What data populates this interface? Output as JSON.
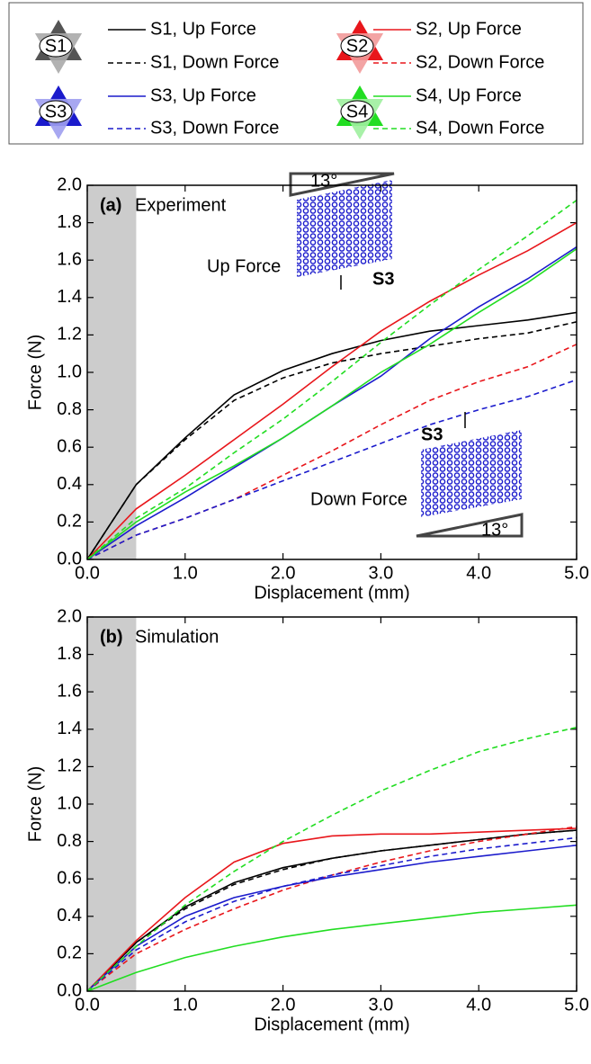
{
  "legend_icons": [
    "S1",
    "S2",
    "S3",
    "S4"
  ],
  "chart_data": [
    {
      "type": "line",
      "panel_label": "(a)",
      "title": "Experiment",
      "xlabel": "Displacement (mm)",
      "ylabel": "Force (N)",
      "x": [
        0,
        0.5,
        1,
        1.5,
        2,
        2.5,
        3,
        3.5,
        4,
        4.5,
        5
      ],
      "shade": [
        0,
        0.5
      ],
      "xlim": [
        0,
        5
      ],
      "ylim": [
        0,
        2
      ],
      "xticks": [
        {
          "value": 0,
          "label": "0.0"
        },
        {
          "value": 1,
          "label": "1.0"
        },
        {
          "value": 2,
          "label": "2.0"
        },
        {
          "value": 3,
          "label": "3.0"
        },
        {
          "value": 4,
          "label": "4.0"
        },
        {
          "value": 5,
          "label": "5.0"
        }
      ],
      "yticks": [
        {
          "value": 0,
          "label": "0.0"
        },
        {
          "value": 0.2,
          "label": "0.2"
        },
        {
          "value": 0.4,
          "label": "0.4"
        },
        {
          "value": 0.6,
          "label": "0.6"
        },
        {
          "value": 0.8,
          "label": "0.8"
        },
        {
          "value": 1,
          "label": "1.0"
        },
        {
          "value": 1.2,
          "label": "1.2"
        },
        {
          "value": 1.4,
          "label": "1.4"
        },
        {
          "value": 1.6,
          "label": "1.6"
        },
        {
          "value": 1.8,
          "label": "1.8"
        },
        {
          "value": 2,
          "label": "2.0"
        }
      ],
      "insets": [
        {
          "label": "Up Force",
          "sample": "S3",
          "angle": "13°"
        },
        {
          "label": "Down Force",
          "sample": "S3",
          "angle": "13°"
        }
      ],
      "series": [
        {
          "name": "S1, Up Force",
          "color": "#000000",
          "line_style": "solid",
          "values": [
            0,
            0.4,
            0.65,
            0.88,
            1.01,
            1.1,
            1.17,
            1.22,
            1.25,
            1.28,
            1.32
          ]
        },
        {
          "name": "S1, Down Force",
          "color": "#000000",
          "line_style": "dashed",
          "values": [
            0,
            0.4,
            0.64,
            0.85,
            0.97,
            1.05,
            1.1,
            1.14,
            1.18,
            1.21,
            1.27
          ]
        },
        {
          "name": "S2, Up Force",
          "color": "#e8161b",
          "line_style": "solid",
          "values": [
            0,
            0.27,
            0.45,
            0.64,
            0.83,
            1.03,
            1.22,
            1.38,
            1.52,
            1.65,
            1.8
          ]
        },
        {
          "name": "S2, Down Force",
          "color": "#e8161b",
          "line_style": "dashed",
          "values": [
            0,
            0.13,
            0.22,
            0.32,
            0.45,
            0.58,
            0.72,
            0.85,
            0.95,
            1.03,
            1.15
          ]
        },
        {
          "name": "S3, Up Force",
          "color": "#1b1bcc",
          "line_style": "solid",
          "values": [
            0,
            0.18,
            0.33,
            0.49,
            0.65,
            0.82,
            0.98,
            1.18,
            1.35,
            1.5,
            1.67
          ]
        },
        {
          "name": "S3, Down Force",
          "color": "#1b1bcc",
          "line_style": "dashed",
          "values": [
            0,
            0.13,
            0.22,
            0.32,
            0.42,
            0.52,
            0.62,
            0.72,
            0.8,
            0.87,
            0.96
          ]
        },
        {
          "name": "S4, Up Force",
          "color": "#22dd22",
          "line_style": "solid",
          "values": [
            0,
            0.2,
            0.36,
            0.5,
            0.65,
            0.82,
            1,
            1.15,
            1.32,
            1.48,
            1.66
          ]
        },
        {
          "name": "S4, Down Force",
          "color": "#22dd22",
          "line_style": "dashed",
          "values": [
            0,
            0.22,
            0.38,
            0.57,
            0.75,
            0.95,
            1.16,
            1.36,
            1.55,
            1.73,
            1.92
          ]
        }
      ]
    },
    {
      "type": "line",
      "panel_label": "(b)",
      "title": "Simulation",
      "xlabel": "Displacement (mm)",
      "ylabel": "Force (N)",
      "x": [
        0,
        0.5,
        1,
        1.5,
        2,
        2.5,
        3,
        3.5,
        4,
        4.5,
        5
      ],
      "shade": [
        0,
        0.5
      ],
      "xlim": [
        0,
        5
      ],
      "ylim": [
        0,
        2
      ],
      "xticks": [
        {
          "value": 0,
          "label": "0.0"
        },
        {
          "value": 1,
          "label": "1.0"
        },
        {
          "value": 2,
          "label": "2.0"
        },
        {
          "value": 3,
          "label": "3.0"
        },
        {
          "value": 4,
          "label": "4.0"
        },
        {
          "value": 5,
          "label": "5.0"
        }
      ],
      "yticks": [
        {
          "value": 0,
          "label": "0.0"
        },
        {
          "value": 0.2,
          "label": "0.2"
        },
        {
          "value": 0.4,
          "label": "0.4"
        },
        {
          "value": 0.6,
          "label": "0.6"
        },
        {
          "value": 0.8,
          "label": "0.8"
        },
        {
          "value": 1,
          "label": "1.0"
        },
        {
          "value": 1.2,
          "label": "1.2"
        },
        {
          "value": 1.4,
          "label": "1.4"
        },
        {
          "value": 1.6,
          "label": "1.6"
        },
        {
          "value": 1.8,
          "label": "1.8"
        },
        {
          "value": 2,
          "label": "2.0"
        }
      ],
      "series": [
        {
          "color": "#000000",
          "line_style": "solid",
          "values": [
            0,
            0.26,
            0.45,
            0.58,
            0.66,
            0.71,
            0.75,
            0.78,
            0.81,
            0.84,
            0.86
          ]
        },
        {
          "color": "#000000",
          "line_style": "dashed",
          "values": [
            0,
            0.26,
            0.44,
            0.57,
            0.65,
            0.71,
            0.75,
            0.78,
            0.81,
            0.84,
            0.86
          ]
        },
        {
          "color": "#e8161b",
          "line_style": "solid",
          "values": [
            0,
            0.27,
            0.5,
            0.69,
            0.79,
            0.83,
            0.84,
            0.84,
            0.85,
            0.86,
            0.87
          ]
        },
        {
          "color": "#e8161b",
          "line_style": "dashed",
          "values": [
            0,
            0.2,
            0.33,
            0.44,
            0.54,
            0.62,
            0.69,
            0.75,
            0.8,
            0.84,
            0.88
          ]
        },
        {
          "color": "#1b1bcc",
          "line_style": "solid",
          "values": [
            0,
            0.24,
            0.4,
            0.5,
            0.56,
            0.61,
            0.65,
            0.69,
            0.72,
            0.75,
            0.78
          ]
        },
        {
          "color": "#1b1bcc",
          "line_style": "dashed",
          "values": [
            0,
            0.22,
            0.37,
            0.48,
            0.56,
            0.62,
            0.67,
            0.72,
            0.76,
            0.79,
            0.82
          ]
        },
        {
          "color": "#22dd22",
          "line_style": "solid",
          "values": [
            0,
            0.1,
            0.18,
            0.24,
            0.29,
            0.33,
            0.36,
            0.39,
            0.42,
            0.44,
            0.46
          ]
        },
        {
          "color": "#22dd22",
          "line_style": "dashed",
          "values": [
            0,
            0.24,
            0.46,
            0.64,
            0.8,
            0.94,
            1.07,
            1.18,
            1.28,
            1.35,
            1.41
          ]
        }
      ]
    }
  ]
}
